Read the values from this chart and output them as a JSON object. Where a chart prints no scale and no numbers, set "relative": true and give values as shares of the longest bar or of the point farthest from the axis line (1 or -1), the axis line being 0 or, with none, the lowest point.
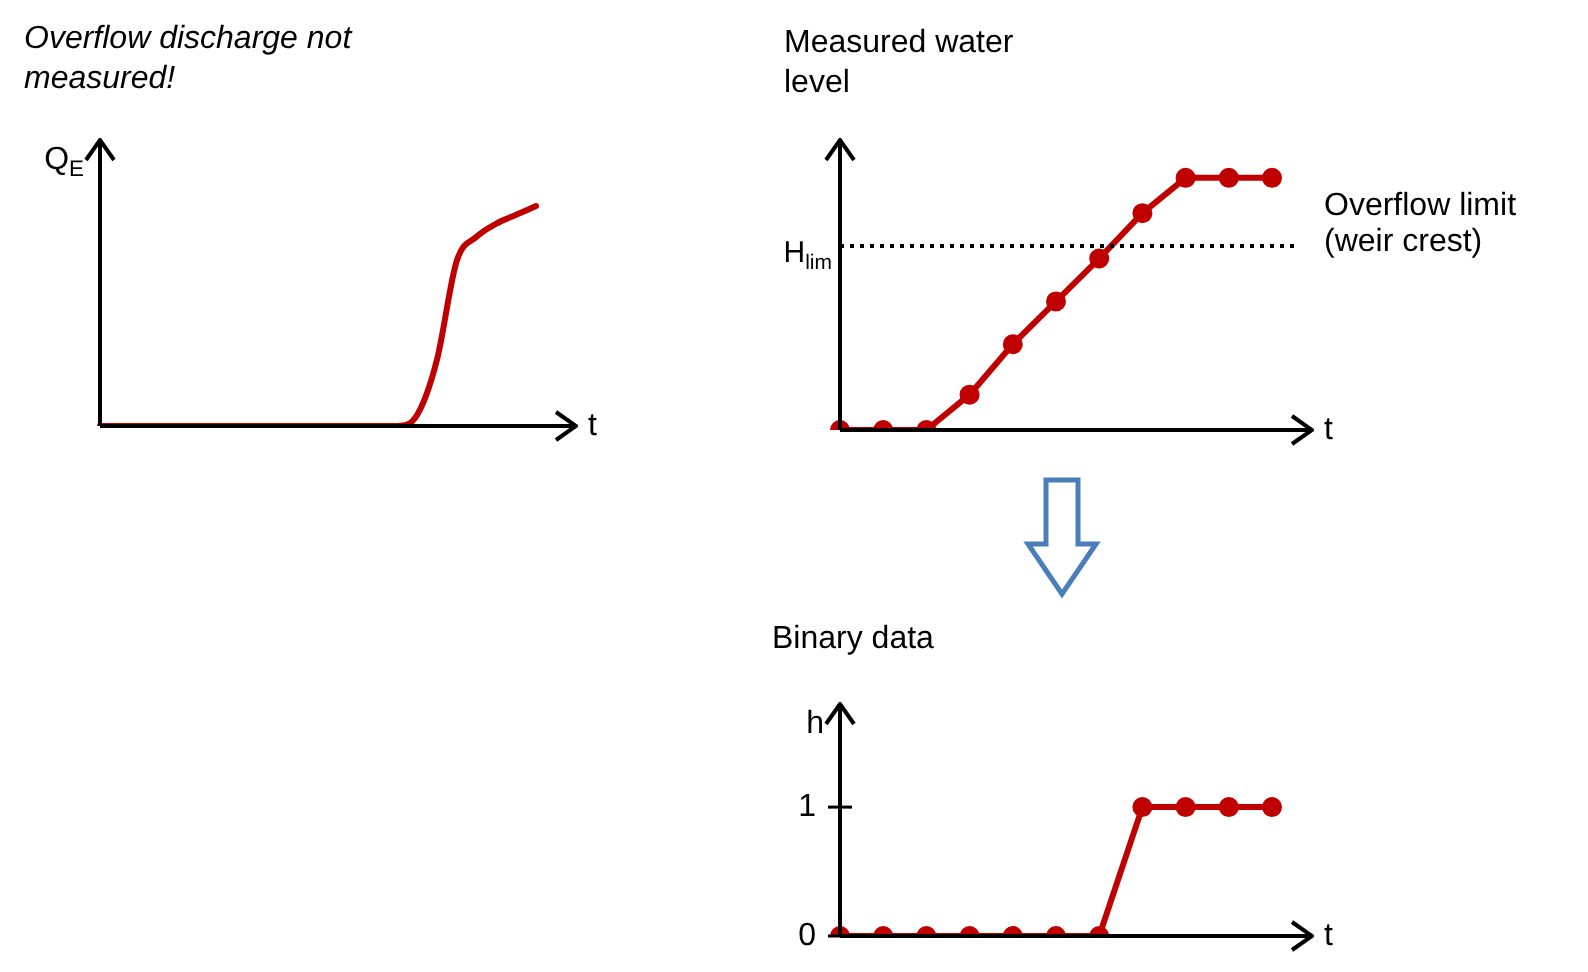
{
  "chart_data": [
    {
      "type": "line",
      "title": "Overflow discharge not measured!",
      "xlabel": "t",
      "ylabel": "Q$_{E}$",
      "relative": true,
      "marker": "none",
      "grid": false,
      "legend": false,
      "categories": [
        null,
        null,
        null,
        null,
        null,
        null,
        null,
        null,
        null,
        null,
        null,
        null,
        null,
        null,
        null,
        null,
        null,
        null,
        null,
        null,
        null,
        null,
        null
      ],
      "series": [
        {
          "color": "#c00000",
          "values": [
            0,
            0,
            0,
            0,
            0,
            0,
            0,
            0,
            0,
            0,
            0,
            0,
            0,
            0,
            0,
            0,
            0.05,
            0.3,
            0.75,
            0.86,
            0.92,
            0.96,
            1
          ]
        }
      ]
    },
    {
      "type": "line",
      "title": "Measured water level",
      "xlabel": "t",
      "relative": true,
      "marker": "circle",
      "grid": false,
      "legend": false,
      "categories": [
        null,
        null,
        null,
        null,
        null,
        null,
        null,
        null,
        null,
        null,
        null
      ],
      "series": [
        {
          "color": "#c00000",
          "values": [
            0,
            0,
            0,
            0.14,
            0.34,
            0.51,
            0.68,
            0.86,
            1,
            1,
            1
          ]
        }
      ],
      "ref_lines": [
        {
          "axis": "y",
          "value": 0.73,
          "label": "H$_{lim}$",
          "line_style": "dotted",
          "color": "#000000"
        }
      ],
      "annotations": [
        "Overflow limit (weir crest)"
      ]
    },
    {
      "type": "line",
      "title": "Binary data",
      "xlabel": "t",
      "ylabel": "h",
      "marker": "circle",
      "grid": false,
      "legend": false,
      "categories": [
        null,
        null,
        null,
        null,
        null,
        null,
        null,
        null,
        null,
        null,
        null
      ],
      "ylim": [
        0,
        1.8
      ],
      "yticks": [
        0,
        1
      ],
      "series": [
        {
          "color": "#c00000",
          "values": [
            0,
            0,
            0,
            0,
            0,
            0,
            0,
            1,
            1,
            1,
            1
          ]
        }
      ]
    }
  ]
}
